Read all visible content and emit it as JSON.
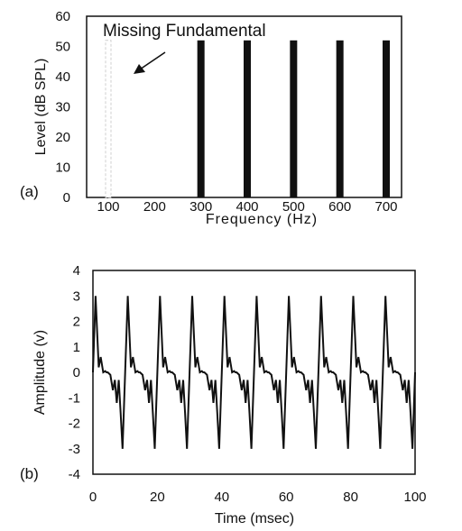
{
  "chart_data": [
    {
      "type": "bar",
      "panel_label": "(a)",
      "xlabel": "Frequency (Hz)",
      "ylabel": "Level (dB SPL)",
      "ylim": [
        0,
        60
      ],
      "yticks": [
        0,
        10,
        20,
        30,
        40,
        50,
        60
      ],
      "xticks": [
        100,
        200,
        300,
        400,
        500,
        600,
        700
      ],
      "categories": [
        100,
        300,
        400,
        500,
        600,
        700
      ],
      "values": [
        52,
        52,
        52,
        52,
        52,
        52
      ],
      "bar_styles": [
        "missing",
        "solid",
        "solid",
        "solid",
        "solid",
        "solid"
      ],
      "annotation": {
        "text": "Missing Fundamental",
        "points_to": 100
      },
      "grid": false,
      "colors": {
        "bar": "#111111",
        "missing_bar": "#cfcfcf"
      }
    },
    {
      "type": "line",
      "panel_label": "(b)",
      "xlabel": "Time (msec)",
      "ylabel": "Amplitude (v)",
      "xlim": [
        0,
        100
      ],
      "ylim": [
        -4,
        4
      ],
      "xticks": [
        0,
        20,
        40,
        60,
        80,
        100
      ],
      "yticks": [
        -4,
        -3,
        -2,
        -1,
        0,
        1,
        2,
        3,
        4
      ],
      "period_ms": 10,
      "grid": false,
      "series": [
        {
          "x": [
            0,
            0.8,
            1.8,
            2.4,
            3.2,
            3.8,
            4.2,
            4.6,
            5.4,
            6.2,
            6.8,
            7.4,
            8,
            8.6,
            9.2,
            10,
            10.8,
            11.8,
            12.4,
            13.2,
            13.8,
            14.2,
            14.6,
            15.4,
            16.2,
            16.8,
            17.4,
            18,
            18.6,
            19.2,
            20,
            20.8,
            21.8,
            22.4,
            23.2,
            23.8,
            24.2,
            24.6,
            25.4,
            26.2,
            26.8,
            27.4,
            28,
            28.6,
            29.2,
            30,
            30.8,
            31.8,
            32.4,
            33.2,
            33.8,
            34.2,
            34.6,
            35.4,
            36.2,
            36.8,
            37.4,
            38,
            38.6,
            39.2,
            40,
            40.8,
            41.8,
            42.4,
            43.2,
            43.8,
            44.2,
            44.6,
            45.4,
            46.2,
            46.8,
            47.4,
            48,
            48.6,
            49.2,
            50,
            50.8,
            51.8,
            52.4,
            53.2,
            53.8,
            54.2,
            54.6,
            55.4,
            56.2,
            56.8,
            57.4,
            58,
            58.6,
            59.2,
            60,
            60.8,
            61.8,
            62.4,
            63.2,
            63.8,
            64.2,
            64.6,
            65.4,
            66.2,
            66.8,
            67.4,
            68,
            68.6,
            69.2,
            70,
            70.8,
            71.8,
            72.4,
            73.2,
            73.8,
            74.2,
            74.6,
            75.4,
            76.2,
            76.8,
            77.4,
            78,
            78.6,
            79.2,
            80,
            80.8,
            81.8,
            82.4,
            83.2,
            83.8,
            84.2,
            84.6,
            85.4,
            86.2,
            86.8,
            87.4,
            88,
            88.6,
            89.2,
            90,
            90.8,
            91.8,
            92.4,
            93.2,
            93.8,
            94.2,
            94.6,
            95.4,
            96.2,
            96.8,
            97.4,
            98,
            98.6,
            99.2,
            100
          ],
          "y": [
            0,
            3,
            0.2,
            0.6,
            0,
            0.05,
            0,
            0,
            -0.1,
            -0.7,
            -0.3,
            -1.2,
            -0.3,
            -1.6,
            -3,
            0,
            3,
            0.2,
            0.6,
            0,
            0.05,
            0,
            0,
            -0.1,
            -0.7,
            -0.3,
            -1.2,
            -0.3,
            -1.6,
            -3,
            0,
            3,
            0.2,
            0.6,
            0,
            0.05,
            0,
            0,
            -0.1,
            -0.7,
            -0.3,
            -1.2,
            -0.3,
            -1.6,
            -3,
            0,
            3,
            0.2,
            0.6,
            0,
            0.05,
            0,
            0,
            -0.1,
            -0.7,
            -0.3,
            -1.2,
            -0.3,
            -1.6,
            -3,
            0,
            3,
            0.2,
            0.6,
            0,
            0.05,
            0,
            0,
            -0.1,
            -0.7,
            -0.3,
            -1.2,
            -0.3,
            -1.6,
            -3,
            0,
            3,
            0.2,
            0.6,
            0,
            0.05,
            0,
            0,
            -0.1,
            -0.7,
            -0.3,
            -1.2,
            -0.3,
            -1.6,
            -3,
            0,
            3,
            0.2,
            0.6,
            0,
            0.05,
            0,
            0,
            -0.1,
            -0.7,
            -0.3,
            -1.2,
            -0.3,
            -1.6,
            -3,
            0,
            3,
            0.2,
            0.6,
            0,
            0.05,
            0,
            0,
            -0.1,
            -0.7,
            -0.3,
            -1.2,
            -0.3,
            -1.6,
            -3,
            0,
            3,
            0.2,
            0.6,
            0,
            0.05,
            0,
            0,
            -0.1,
            -0.7,
            -0.3,
            -1.2,
            -0.3,
            -1.6,
            -3,
            0,
            3,
            0.2,
            0.6,
            0,
            0.05,
            0,
            0,
            -0.1,
            -0.7,
            -0.3,
            -1.2,
            -0.3,
            -1.6,
            -3,
            0
          ]
        }
      ],
      "colors": {
        "line": "#111111"
      }
    }
  ]
}
